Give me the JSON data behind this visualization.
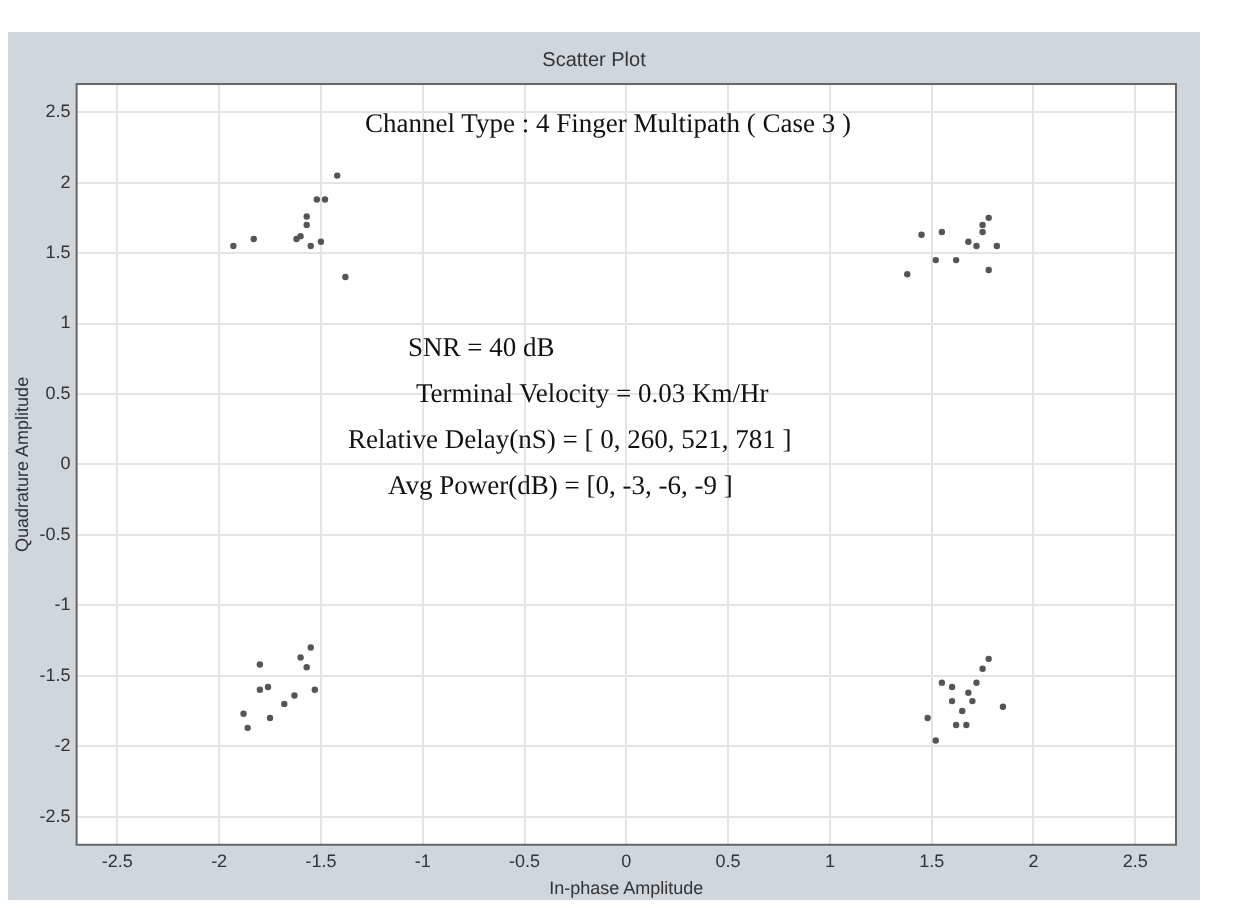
{
  "chart_data": {
    "type": "scatter",
    "title": "Scatter Plot",
    "xlabel": "In-phase Amplitude",
    "ylabel": "Quadrature Amplitude",
    "annotations": [
      "Channel Type : 4 Finger Multipath ( Case 3 )",
      "SNR = 40 dB",
      "Terminal Velocity = 0.03 Km/Hr",
      "Relative Delay(nS) = [ 0, 260, 521, 781 ]",
      "Avg Power(dB) = [0, -3, -6, -9 ]"
    ],
    "xlim": [
      -2.7,
      2.7
    ],
    "ylim": [
      -2.7,
      2.7
    ],
    "xticks": [
      -2.5,
      -2,
      -1.5,
      -1,
      -0.5,
      0,
      0.5,
      1,
      1.5,
      2,
      2.5
    ],
    "yticks": [
      -2.5,
      -2,
      -1.5,
      -1,
      -0.5,
      0,
      0.5,
      1,
      1.5,
      2,
      2.5
    ],
    "grid": true,
    "legend": false,
    "marker": "circle",
    "series": [
      {
        "color": "#555555",
        "x": [
          -1.93,
          -1.83,
          -1.62,
          -1.57,
          -1.57,
          -1.52,
          -1.48,
          -1.42,
          -1.38,
          -1.55,
          -1.6,
          -1.5,
          1.38,
          1.45,
          1.52,
          1.55,
          1.62,
          1.68,
          1.72,
          1.75,
          1.75,
          1.78,
          1.78,
          1.82,
          -1.88,
          -1.86,
          -1.8,
          -1.76,
          -1.75,
          -1.68,
          -1.63,
          -1.6,
          -1.55,
          -1.53,
          -1.8,
          -1.57,
          1.48,
          1.52,
          1.55,
          1.6,
          1.62,
          1.65,
          1.68,
          1.7,
          1.72,
          1.75,
          1.78,
          1.85,
          1.6,
          1.67
        ],
        "values": [
          1.55,
          1.6,
          1.6,
          1.7,
          1.76,
          1.88,
          1.88,
          2.05,
          1.33,
          1.55,
          1.62,
          1.58,
          1.35,
          1.63,
          1.45,
          1.65,
          1.45,
          1.58,
          1.55,
          1.65,
          1.7,
          1.75,
          1.38,
          1.55,
          -1.77,
          -1.87,
          -1.6,
          -1.58,
          -1.8,
          -1.7,
          -1.64,
          -1.37,
          -1.3,
          -1.6,
          -1.42,
          -1.44,
          -1.8,
          -1.96,
          -1.55,
          -1.58,
          -1.85,
          -1.75,
          -1.62,
          -1.68,
          -1.55,
          -1.45,
          -1.38,
          -1.72,
          -1.68,
          -1.85
        ]
      }
    ]
  }
}
